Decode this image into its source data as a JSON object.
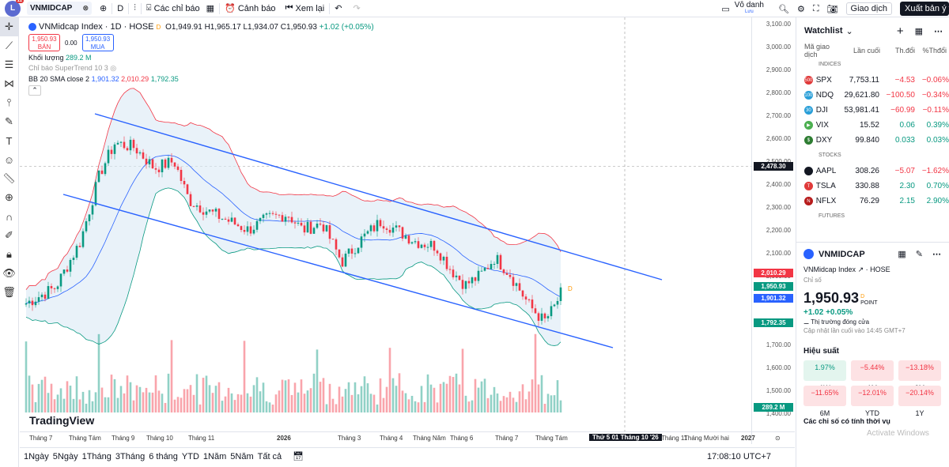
{
  "toolbar": {
    "logo": "L",
    "logo_badge": "11",
    "symbol": "VNMIDCAP",
    "interval": "D",
    "indicators": "Các chỉ báo",
    "alerts": "Cảnh báo",
    "replay": "Xem lại",
    "layout_name": "Vô danh",
    "layout_sub": "Lưu",
    "trade": "Giao dịch",
    "publish": "Xuất bản ý tưởng"
  },
  "legend": {
    "title": "VNMidcap Index · 1D · HOSE",
    "flag": "D",
    "o": "O1,949.91",
    "h": "H1,965.17",
    "l": "L1,934.07",
    "c": "C1,950.93",
    "chg": "+1.02 (+0.05%)",
    "sell_price": "1,950.93",
    "sell_label": "BÁN",
    "spread": "0.00",
    "buy_price": "1,950.93",
    "buy_label": "MUA",
    "volume_label": "Khối lượng",
    "volume_value": "289.2 M",
    "supertrend": "Chỉ báo SuperTrend 10 3",
    "bb": "BB 20 SMA close 2",
    "bb_mid": "1,901.32",
    "bb_up": "2,010.29",
    "bb_low": "1,792.35"
  },
  "price_axis": [
    "3,100.00",
    "3,000.00",
    "2,900.00",
    "2,800.00",
    "2,700.00",
    "2,600.00",
    "2,500.00",
    "2,400.00",
    "2,300.00",
    "2,200.00",
    "2,100.00",
    "2,000.00",
    "1,900.00",
    "1,800.00",
    "1,700.00",
    "1,600.00",
    "1,500.00",
    "1,400.00"
  ],
  "price_tags": {
    "crosshair": "2,478.30",
    "bb_up": "2,010.29",
    "last": "1,950.93",
    "bb_mid": "1,901.32",
    "bb_low": "1,792.35",
    "volume": "289.2 M"
  },
  "time_axis": [
    "Tháng 7",
    "Tháng Tám",
    "Tháng 9",
    "Tháng 10",
    "Tháng 11",
    "2026",
    "Tháng 3",
    "Tháng 4",
    "Tháng Năm",
    "Tháng 6",
    "Tháng 7",
    "Tháng Tám",
    "Tháng 11",
    "Tháng Mười hai",
    "2027"
  ],
  "time_crosshair": "Thứ 5 01 Tháng 10 '26",
  "watermark": "TradingView",
  "ranges": [
    "1Ngày",
    "5Ngày",
    "1Tháng",
    "3Tháng",
    "6 tháng",
    "YTD",
    "1Năm",
    "5Năm",
    "Tất cả"
  ],
  "clock": "17:08:10 UTC+7",
  "watchlist": {
    "title": "Watchlist",
    "col_symbol": "Mã giao dịch",
    "col_last": "Lần cuối",
    "col_chg": "Th.đổi",
    "col_pct": "%Thđổi",
    "sections": [
      {
        "name": "INDICES",
        "rows": [
          {
            "icon": "500",
            "color": "#e03a3a",
            "sym": "SPX",
            "last": "7,753.11",
            "chg": "−4.53",
            "pct": "−0.06%",
            "dir": "neg"
          },
          {
            "icon": "100",
            "color": "#2a9fd8",
            "sym": "NDQ",
            "last": "29,621.80",
            "chg": "−100.50",
            "pct": "−0.34%",
            "dir": "neg"
          },
          {
            "icon": "30",
            "color": "#2a9fd8",
            "sym": "DJI",
            "last": "53,981.41",
            "chg": "−60.99",
            "pct": "−0.11%",
            "dir": "neg"
          },
          {
            "icon": "▶",
            "color": "#4caf50",
            "sym": "VIX",
            "last": "15.52",
            "chg": "0.06",
            "pct": "0.39%",
            "dir": "pos"
          },
          {
            "icon": "$",
            "color": "#2e7d32",
            "sym": "DXY",
            "last": "99.840",
            "chg": "0.033",
            "pct": "0.03%",
            "dir": "pos"
          }
        ]
      },
      {
        "name": "STOCKS",
        "rows": [
          {
            "icon": "",
            "color": "#131722",
            "sym": "AAPL",
            "last": "308.26",
            "chg": "−5.07",
            "pct": "−1.62%",
            "dir": "neg"
          },
          {
            "icon": "T",
            "color": "#e03a3a",
            "sym": "TSLA",
            "last": "330.88",
            "chg": "2.30",
            "pct": "0.70%",
            "dir": "pos"
          },
          {
            "icon": "N",
            "color": "#b71c1c",
            "sym": "NFLX",
            "last": "76.29",
            "chg": "2.15",
            "pct": "2.90%",
            "dir": "pos"
          }
        ]
      },
      {
        "name": "FUTURES",
        "rows": []
      }
    ]
  },
  "detail": {
    "symbol": "VNMIDCAP",
    "name": "VNMidcap Index",
    "exchange": "HOSE",
    "type": "Chỉ số",
    "price": "1,950.93",
    "flag": "D",
    "unit": "POINT",
    "change": "+1.02 +0.05%",
    "market": "Thị trường đóng cửa",
    "updated": "Cập nhật lần cuối vào 14:45 GMT+7",
    "perf_title": "Hiệu suất",
    "perf": [
      {
        "v": "1.97%",
        "l": "1W",
        "dir": "pos"
      },
      {
        "v": "−5.44%",
        "l": "1M",
        "dir": "neg"
      },
      {
        "v": "−13.18%",
        "l": "3M",
        "dir": "neg"
      },
      {
        "v": "−11.65%",
        "l": "6M",
        "dir": "neg"
      },
      {
        "v": "−12.01%",
        "l": "YTD",
        "dir": "neg"
      },
      {
        "v": "−20.14%",
        "l": "1Y",
        "dir": "neg"
      }
    ],
    "tech_title": "Các chỉ số có tính thời vụ"
  },
  "windows_notice": "Activate Windows",
  "colors": {
    "up": "#089981",
    "down": "#f23645",
    "channel": "#2962ff",
    "bb_fill": "#dbeaf5",
    "accent": "#2962ff"
  }
}
